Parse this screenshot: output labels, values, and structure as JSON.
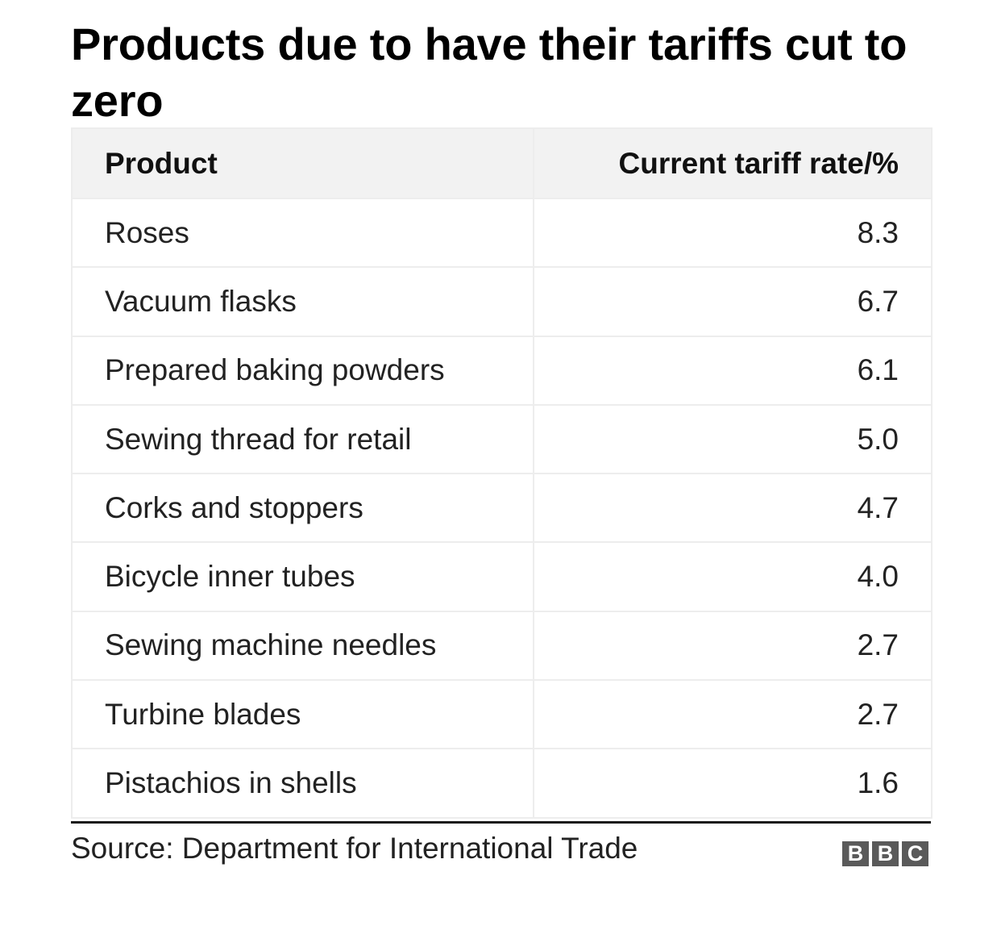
{
  "title": "Products due to have their tariffs cut to zero",
  "chart_data": {
    "type": "table",
    "title": "Products due to have their tariffs cut to zero",
    "columns": [
      "Product",
      "Current tariff rate/%"
    ],
    "rows": [
      {
        "product": "Roses",
        "rate": "8.3"
      },
      {
        "product": "Vacuum flasks",
        "rate": "6.7"
      },
      {
        "product": "Prepared baking powders",
        "rate": "6.1"
      },
      {
        "product": "Sewing thread for retail",
        "rate": "5.0"
      },
      {
        "product": "Corks and stoppers",
        "rate": "4.7"
      },
      {
        "product": "Bicycle inner tubes",
        "rate": "4.0"
      },
      {
        "product": "Sewing machine needles",
        "rate": "2.7"
      },
      {
        "product": "Turbine blades",
        "rate": "2.7"
      },
      {
        "product": "Pistachios in shells",
        "rate": "1.6"
      }
    ]
  },
  "footer": {
    "source": "Source: Department for International Trade",
    "logo_letters": [
      "B",
      "B",
      "C"
    ]
  },
  "colors": {
    "header_bg": "#f2f2f2",
    "grid": "#ededed",
    "rule": "#1a1a1a",
    "logo": "#5a5a5a"
  }
}
